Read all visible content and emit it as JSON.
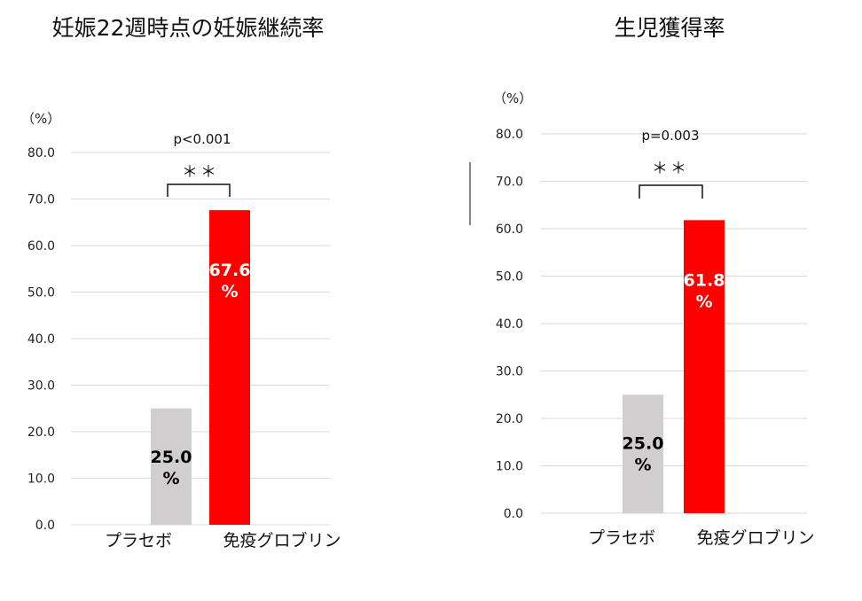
{
  "chart_data": [
    {
      "type": "bar",
      "title": "妊娠22週時点の妊娠継続率",
      "unit_label": "（%）",
      "categories": [
        "プラセボ",
        "免疫グロブリン"
      ],
      "values": [
        25.0,
        67.6
      ],
      "data_labels": [
        [
          "25.0",
          "%"
        ],
        [
          "67.6",
          "%"
        ]
      ],
      "colors": [
        "#d0cece",
        "#ff0000"
      ],
      "label_colors": [
        "#000000",
        "#ffffff"
      ],
      "ylim": [
        0,
        80
      ],
      "yticks": [
        "0.0",
        "10.0",
        "20.0",
        "30.0",
        "40.0",
        "50.0",
        "60.0",
        "70.0",
        "80.0"
      ],
      "grid": true,
      "annotation": {
        "p_value": "p<0.001",
        "significance": "＊＊"
      }
    },
    {
      "type": "bar",
      "title": "生児獲得率",
      "unit_label": "（%）",
      "categories": [
        "プラセボ",
        "免疫グロブリン"
      ],
      "values": [
        25.0,
        61.8
      ],
      "data_labels": [
        [
          "25.0",
          "%"
        ],
        [
          "61.8",
          "%"
        ]
      ],
      "colors": [
        "#d0cece",
        "#ff0000"
      ],
      "label_colors": [
        "#000000",
        "#ffffff"
      ],
      "ylim": [
        0,
        80
      ],
      "yticks": [
        "0.0",
        "10.0",
        "20.0",
        "30.0",
        "40.0",
        "50.0",
        "60.0",
        "70.0",
        "80.0"
      ],
      "grid": true,
      "annotation": {
        "p_value": "p=0.003",
        "significance": "＊＊"
      }
    }
  ]
}
